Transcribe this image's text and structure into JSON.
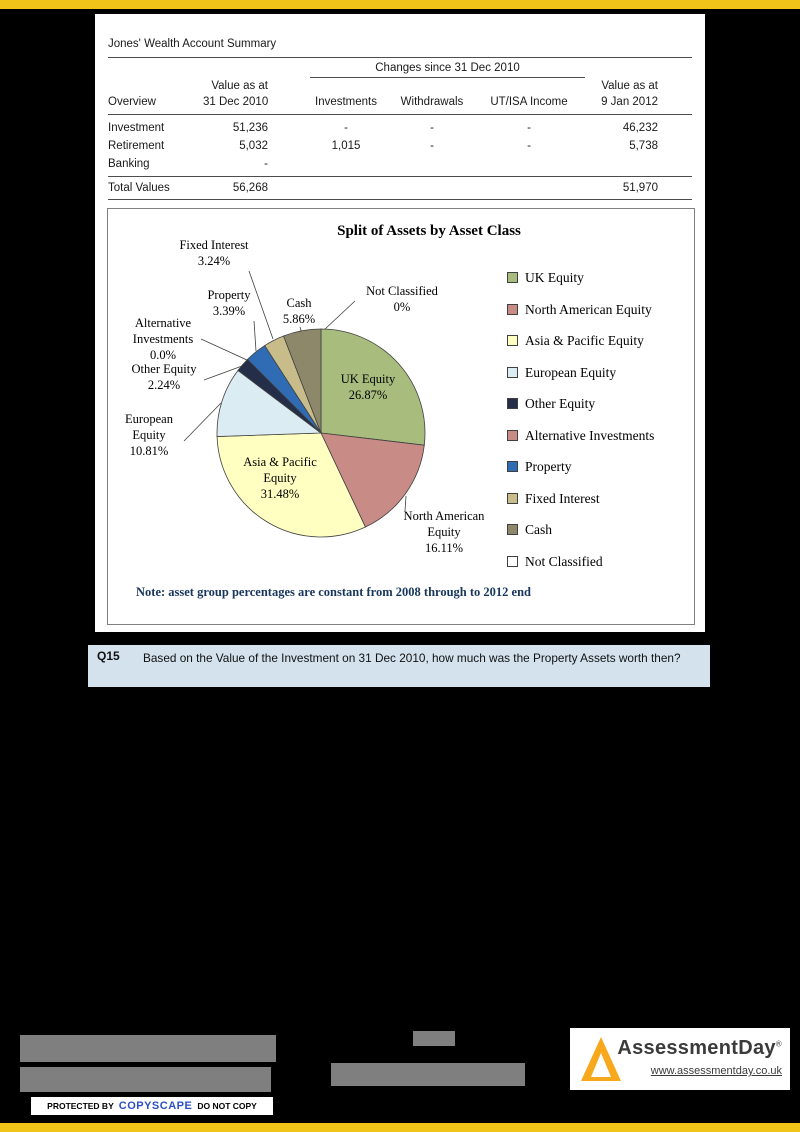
{
  "accent": {
    "bar_color": "#f0c419"
  },
  "summary_table": {
    "title": "Jones' Wealth Account Summary",
    "changes_header": "Changes since 31 Dec 2010",
    "headers": {
      "overview": "Overview",
      "value_start_line1": "Value as at",
      "value_start_line2": "31 Dec 2010",
      "investments": "Investments",
      "withdrawals": "Withdrawals",
      "ut_isa_income": "UT/ISA Income",
      "value_end_line1": "Value as at",
      "value_end_line2": "9 Jan 2012"
    },
    "rows": [
      {
        "name": "Investment",
        "value_start": "51,236",
        "investments": "-",
        "withdrawals": "-",
        "ut_isa": "-",
        "value_end": "46,232"
      },
      {
        "name": "Retirement",
        "value_start": "5,032",
        "investments": "1,015",
        "withdrawals": "-",
        "ut_isa": "-",
        "value_end": "5,738"
      },
      {
        "name": "Banking",
        "value_start": "-",
        "investments": "",
        "withdrawals": "",
        "ut_isa": "",
        "value_end": ""
      }
    ],
    "total_row": {
      "name": "Total Values",
      "value_start": "56,268",
      "value_end": "51,970"
    }
  },
  "chart_data": {
    "type": "pie",
    "title": "Split of Assets by Asset Class",
    "categories": [
      "UK Equity",
      "North American Equity",
      "Asia & Pacific Equity",
      "European Equity",
      "Other Equity",
      "Alternative Investments",
      "Property",
      "Fixed Interest",
      "Cash",
      "Not Classified"
    ],
    "values": [
      26.87,
      16.11,
      31.48,
      10.81,
      2.24,
      0.0,
      3.39,
      3.24,
      5.86,
      0
    ],
    "colors": [
      "#a8bc7e",
      "#c98b85",
      "#ffffc2",
      "#dcecf3",
      "#252e49",
      "#c98b85",
      "#2f6cb4",
      "#c8bc8b",
      "#8e886b",
      "#ffffff"
    ],
    "legend_position": "right",
    "start_angle_deg": 0,
    "direction": "clockwise",
    "callouts": [
      [
        "Fixed Interest",
        "3.24%"
      ],
      [
        "Property",
        "3.39%"
      ],
      [
        "Cash",
        "5.86%"
      ],
      [
        "Not Classified",
        "0%"
      ],
      [
        "Alternative",
        "Investments",
        "0.0%"
      ],
      [
        "Other Equity",
        "2.24%"
      ],
      [
        "European",
        "Equity",
        "10.81%"
      ],
      [
        "Asia & Pacific",
        "Equity",
        "31.48%"
      ],
      [
        "North American",
        "Equity",
        "16.11%"
      ],
      [
        "UK Equity",
        "26.87%"
      ]
    ],
    "note": "Note: asset group percentages are constant from 2008 through to 2012 end"
  },
  "question": {
    "id": "Q15",
    "text": "Based on the Value of the Investment on 31 Dec 2010, how much was the Property Assets worth then?"
  },
  "footer": {
    "brand": "AssessmentDay",
    "registered_mark": "®",
    "url": "www.assessmentday.co.uk",
    "copyscape_prefix": "PROTECTED BY",
    "copyscape_brand": "COPYSCAPE",
    "copyscape_suffix": "DO NOT COPY"
  }
}
